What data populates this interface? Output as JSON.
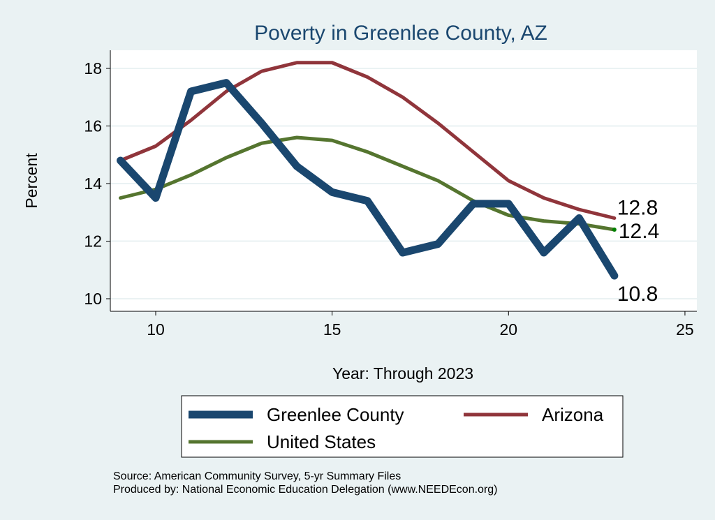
{
  "chart_data": {
    "type": "line",
    "title": "Poverty in Greenlee County, AZ",
    "xlabel": "Year: Through 2023",
    "ylabel": "Percent",
    "xlim": [
      8.7,
      25.3
    ],
    "ylim": [
      9.6,
      18.6
    ],
    "xticks": [
      10,
      15,
      20,
      25
    ],
    "yticks": [
      10,
      12,
      14,
      16,
      18
    ],
    "grid": true,
    "legend_position": "bottom",
    "x": [
      9,
      10,
      11,
      12,
      13,
      14,
      15,
      16,
      17,
      18,
      19,
      20,
      21,
      22,
      23
    ],
    "series": [
      {
        "name": "Greenlee County",
        "color": "#1a476f",
        "values": [
          14.8,
          13.5,
          17.2,
          17.5,
          16.1,
          14.6,
          13.7,
          13.4,
          11.6,
          11.9,
          13.3,
          13.3,
          11.6,
          12.8,
          10.8
        ],
        "end_label": "10.8"
      },
      {
        "name": "Arizona",
        "color": "#90353b",
        "values": [
          14.8,
          15.3,
          16.2,
          17.2,
          17.9,
          18.2,
          18.2,
          17.7,
          17.0,
          16.1,
          15.1,
          14.1,
          13.5,
          13.1,
          12.8
        ],
        "end_label": "12.8"
      },
      {
        "name": "United States",
        "color": "#55752f",
        "values": [
          13.5,
          13.8,
          14.3,
          14.9,
          15.4,
          15.6,
          15.5,
          15.1,
          14.6,
          14.1,
          13.4,
          12.9,
          12.7,
          12.6,
          12.4
        ],
        "end_label": "12.4"
      }
    ],
    "notes": [
      "Source: American Community Survey, 5-yr Summary Files",
      "Produced by: National Economic Education Delegation (www.NEEDEcon.org)"
    ]
  }
}
